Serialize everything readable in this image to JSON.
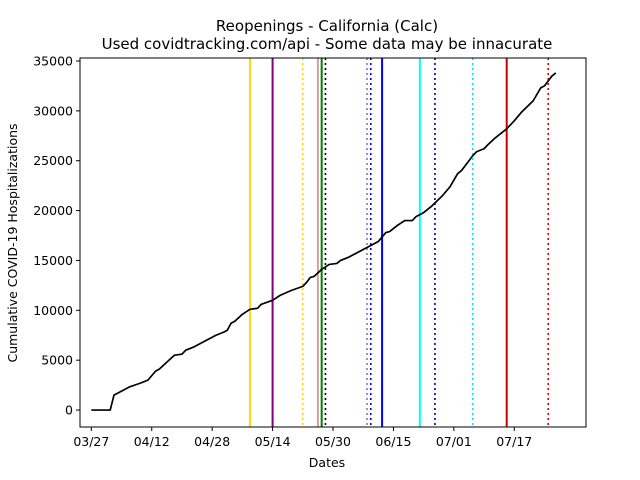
{
  "chart_data": {
    "type": "line",
    "title": "Reopenings - California (Calc)",
    "subtitle": "Used covidtracking.com/api - Some data may be innacurate",
    "xlabel": "Dates",
    "ylabel": "Cumulative COVID-19 Hospitalizations",
    "x_start": "2020-03-27",
    "x_range": [
      "03/24",
      "08/05"
    ],
    "ylim": [
      -1700,
      35300
    ],
    "grid": false,
    "x_ticks": [
      {
        "date": "03/27",
        "label": "03/27"
      },
      {
        "date": "04/12",
        "label": "04/12"
      },
      {
        "date": "04/28",
        "label": "04/28"
      },
      {
        "date": "05/14",
        "label": "05/14"
      },
      {
        "date": "05/30",
        "label": "05/30"
      },
      {
        "date": "06/15",
        "label": "06/15"
      },
      {
        "date": "07/01",
        "label": "07/01"
      },
      {
        "date": "07/17",
        "label": "07/17"
      }
    ],
    "y_ticks": [
      {
        "value": 0,
        "label": "0"
      },
      {
        "value": 5000,
        "label": "5000"
      },
      {
        "value": 10000,
        "label": "10000"
      },
      {
        "value": 15000,
        "label": "15000"
      },
      {
        "value": 20000,
        "label": "20000"
      },
      {
        "value": 25000,
        "label": "25000"
      },
      {
        "value": 30000,
        "label": "30000"
      },
      {
        "value": 35000,
        "label": "35000"
      }
    ],
    "series": [
      {
        "color": "#000000",
        "points": [
          [
            "03/27",
            0
          ],
          [
            "04/01",
            0
          ],
          [
            "04/02",
            1500
          ],
          [
            "04/04",
            1900
          ],
          [
            "04/06",
            2300
          ],
          [
            "04/09",
            2700
          ],
          [
            "04/11",
            3000
          ],
          [
            "04/13",
            3900
          ],
          [
            "04/14",
            4100
          ],
          [
            "04/16",
            4800
          ],
          [
            "04/18",
            5500
          ],
          [
            "04/20",
            5600
          ],
          [
            "04/21",
            6000
          ],
          [
            "04/23",
            6300
          ],
          [
            "04/26",
            6900
          ],
          [
            "04/29",
            7500
          ],
          [
            "05/01",
            7800
          ],
          [
            "05/02",
            8000
          ],
          [
            "05/03",
            8700
          ],
          [
            "05/04",
            8900
          ],
          [
            "05/06",
            9600
          ],
          [
            "05/08",
            10100
          ],
          [
            "05/10",
            10200
          ],
          [
            "05/11",
            10600
          ],
          [
            "05/14",
            11000
          ],
          [
            "05/16",
            11500
          ],
          [
            "05/19",
            12000
          ],
          [
            "05/22",
            12400
          ],
          [
            "05/23",
            12800
          ],
          [
            "05/24",
            13300
          ],
          [
            "05/25",
            13400
          ],
          [
            "05/27",
            14100
          ],
          [
            "05/29",
            14600
          ],
          [
            "05/31",
            14700
          ],
          [
            "06/01",
            15000
          ],
          [
            "06/03",
            15300
          ],
          [
            "06/05",
            15700
          ],
          [
            "06/07",
            16100
          ],
          [
            "06/09",
            16500
          ],
          [
            "06/11",
            16900
          ],
          [
            "06/13",
            17800
          ],
          [
            "06/14",
            17900
          ],
          [
            "06/16",
            18500
          ],
          [
            "06/18",
            19000
          ],
          [
            "06/20",
            19000
          ],
          [
            "06/21",
            19400
          ],
          [
            "06/23",
            19800
          ],
          [
            "06/25",
            20400
          ],
          [
            "06/28",
            21500
          ],
          [
            "06/30",
            22400
          ],
          [
            "07/02",
            23700
          ],
          [
            "07/03",
            24000
          ],
          [
            "07/04",
            24500
          ],
          [
            "07/06",
            25500
          ],
          [
            "07/07",
            25900
          ],
          [
            "07/09",
            26200
          ],
          [
            "07/10",
            26600
          ],
          [
            "07/12",
            27300
          ],
          [
            "07/15",
            28200
          ],
          [
            "07/17",
            29000
          ],
          [
            "07/19",
            29900
          ],
          [
            "07/22",
            31000
          ],
          [
            "07/24",
            32300
          ],
          [
            "07/25",
            32500
          ],
          [
            "07/27",
            33500
          ],
          [
            "07/28",
            33800
          ]
        ]
      }
    ],
    "vlines": [
      {
        "date": "05/08",
        "color": "#ffd700",
        "style": "solid"
      },
      {
        "date": "05/14",
        "color": "#800080",
        "style": "solid"
      },
      {
        "date": "05/22",
        "color": "#ffd700",
        "style": "dotted"
      },
      {
        "date": "05/26",
        "color": "#d2a0a0",
        "style": "solid"
      },
      {
        "date": "05/27",
        "color": "#008000",
        "style": "solid"
      },
      {
        "date": "05/28",
        "color": "#000000",
        "style": "dotted"
      },
      {
        "date": "06/08",
        "color": "#9070b0",
        "style": "dotted"
      },
      {
        "date": "06/09",
        "color": "#0000cd",
        "style": "dotted"
      },
      {
        "date": "06/12",
        "color": "#0000ff",
        "style": "solid"
      },
      {
        "date": "06/22",
        "color": "#00ffff",
        "style": "solid"
      },
      {
        "date": "06/26",
        "color": "#00008b",
        "style": "dotted"
      },
      {
        "date": "07/06",
        "color": "#00e0ff",
        "style": "dotted"
      },
      {
        "date": "07/15",
        "color": "#cc0000",
        "style": "solid"
      },
      {
        "date": "07/26",
        "color": "#cc0000",
        "style": "dotted"
      }
    ]
  }
}
